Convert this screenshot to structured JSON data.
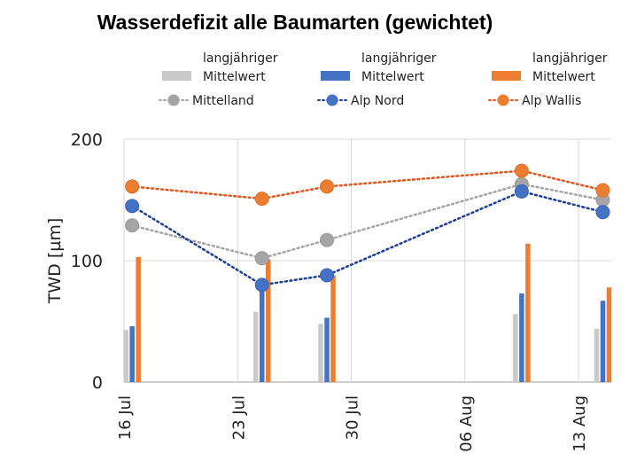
{
  "chart_data": {
    "type": "bar+line",
    "title": "Wasserdefizit alle Baumarten (gewichtet)",
    "ylabel": "TWD [µm]",
    "xlabel": "",
    "ylim": [
      0,
      200
    ],
    "yticks": [
      "0",
      "100",
      "200"
    ],
    "ytick_values": [
      0,
      100,
      200
    ],
    "xrange_days": [
      0,
      30
    ],
    "xticks": [
      {
        "label": "16 Jul",
        "day": 0
      },
      {
        "label": "23 Jul",
        "day": 7
      },
      {
        "label": "30 Jul",
        "day": 14
      },
      {
        "label": "06 Aug",
        "day": 21
      },
      {
        "label": "13 Aug",
        "day": 28
      }
    ],
    "grid": true,
    "legend_position": "top",
    "x_days": [
      0.5,
      8.5,
      12.5,
      24.5,
      29.5
    ],
    "bar_series": [
      {
        "name": "langjähriger Mittelwert",
        "name_line1": "langjähriger",
        "name_line2": "Mittelwert",
        "color": "#c9c9c9",
        "values": [
          43,
          58,
          48,
          56,
          44
        ]
      },
      {
        "name": "langjähriger Mittelwert",
        "name_line1": "langjähriger",
        "name_line2": "Mittelwert",
        "color": "#4472c4",
        "values": [
          46,
          80,
          53,
          73,
          67
        ]
      },
      {
        "name": "langjähriger Mittelwert",
        "name_line1": "langjähriger",
        "name_line2": "Mittelwert",
        "color": "#ed7d31",
        "values": [
          103,
          101,
          88,
          114,
          78
        ]
      }
    ],
    "line_series": [
      {
        "name": "Mittelland",
        "color": "#a5a5a5",
        "line_color": "#a5a5a5",
        "values": [
          129,
          102,
          117,
          163,
          150
        ]
      },
      {
        "name": "Alp Nord",
        "color": "#4472c4",
        "line_color": "#1f3e96",
        "values": [
          145,
          80,
          88,
          157,
          140
        ]
      },
      {
        "name": "Alp Wallis",
        "color": "#ed7d31",
        "line_color": "#e0561e",
        "values": [
          161,
          151,
          161,
          174,
          158
        ]
      }
    ]
  }
}
